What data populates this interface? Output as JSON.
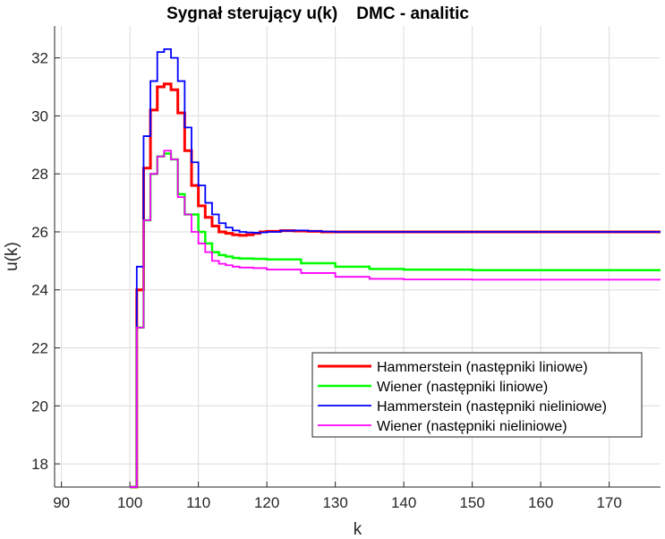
{
  "chart_data": {
    "type": "line",
    "title": "Sygnał sterujący u(k)    DMC - analitic",
    "xlabel": "k",
    "ylabel": "u(k)",
    "xlim": [
      89,
      177.5
    ],
    "ylim": [
      17.2,
      33.1
    ],
    "xticks": [
      90,
      100,
      110,
      120,
      130,
      140,
      150,
      160,
      170
    ],
    "yticks": [
      18,
      20,
      22,
      24,
      26,
      28,
      30,
      32
    ],
    "grid": true,
    "step": true,
    "legend_position": "bottom-right",
    "series": [
      {
        "name": "Hammerstein (następniki liniowe)",
        "color": "#ff0000",
        "x": [
          100,
          101,
          102,
          103,
          104,
          105,
          106,
          107,
          108,
          109,
          110,
          111,
          112,
          113,
          114,
          115,
          116,
          117,
          118,
          119,
          120,
          122,
          124,
          126,
          128,
          130,
          177.5
        ],
        "y": [
          17.2,
          24.0,
          28.2,
          30.2,
          31.0,
          31.1,
          30.9,
          30.1,
          28.8,
          27.6,
          26.9,
          26.5,
          26.2,
          26.0,
          25.95,
          25.9,
          25.88,
          25.9,
          25.95,
          26.0,
          26.02,
          26.04,
          26.03,
          26.02,
          26.0,
          26.0,
          26.0
        ]
      },
      {
        "name": "Wiener (następniki liniowe)",
        "color": "#00ff00",
        "x": [
          100,
          101,
          102,
          103,
          104,
          105,
          106,
          107,
          108,
          109,
          110,
          111,
          112,
          113,
          114,
          115,
          116,
          118,
          120,
          125,
          130,
          135,
          140,
          150,
          160,
          177.5
        ],
        "y": [
          17.2,
          22.7,
          26.4,
          28.0,
          28.6,
          28.7,
          28.5,
          27.3,
          26.6,
          26.6,
          26.0,
          25.6,
          25.3,
          25.2,
          25.15,
          25.1,
          25.08,
          25.07,
          25.05,
          24.92,
          24.8,
          24.72,
          24.7,
          24.68,
          24.68,
          24.68
        ]
      },
      {
        "name": "Hammerstein (następniki nieliniowe)",
        "color": "#0000ff",
        "x": [
          100,
          101,
          102,
          103,
          104,
          105,
          106,
          107,
          108,
          109,
          110,
          111,
          112,
          113,
          114,
          115,
          116,
          117,
          118,
          119,
          120,
          122,
          124,
          126,
          128,
          130,
          177.5
        ],
        "y": [
          17.2,
          24.8,
          29.3,
          31.2,
          32.2,
          32.3,
          32.0,
          31.2,
          29.6,
          28.4,
          27.6,
          27.0,
          26.6,
          26.3,
          26.15,
          26.05,
          26.0,
          25.98,
          25.97,
          25.98,
          26.0,
          26.04,
          26.05,
          26.03,
          26.01,
          26.0,
          26.0
        ]
      },
      {
        "name": "Wiener (następniki nieliniowe)",
        "color": "#ff00ff",
        "x": [
          100,
          101,
          102,
          103,
          104,
          105,
          106,
          107,
          108,
          109,
          110,
          111,
          112,
          113,
          114,
          115,
          116,
          118,
          120,
          125,
          130,
          135,
          140,
          150,
          160,
          177.5
        ],
        "y": [
          17.2,
          22.7,
          26.4,
          28.0,
          28.6,
          28.8,
          28.5,
          27.2,
          26.6,
          26.0,
          25.6,
          25.3,
          25.0,
          24.9,
          24.85,
          24.8,
          24.77,
          24.75,
          24.7,
          24.58,
          24.45,
          24.38,
          24.36,
          24.35,
          24.35,
          24.35
        ]
      }
    ]
  }
}
